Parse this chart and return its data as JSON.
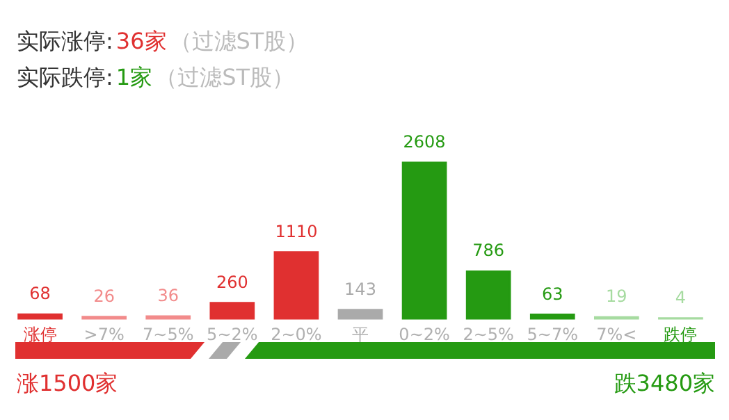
{
  "chart_data": {
    "type": "bar",
    "categories": [
      "涨停",
      ">7%",
      "7~5%",
      "5~2%",
      "2~0%",
      "平",
      "0~2%",
      "2~5%",
      "5~7%",
      "7%<",
      "跌停"
    ],
    "values": [
      68,
      26,
      36,
      260,
      1110,
      143,
      2608,
      786,
      63,
      19,
      4
    ],
    "colors": [
      "#e03030",
      "#f28b8b",
      "#f28b8b",
      "#e03030",
      "#e03030",
      "#aaaaaa",
      "#259a12",
      "#259a12",
      "#259a12",
      "#a6dba0",
      "#a6dba0"
    ],
    "data_labels": true,
    "annotations": [
      "实际涨停:",
      "36家",
      "（过滤ST股）",
      "实际跌停:",
      "1家",
      "（过滤ST股）",
      "涨1500家",
      "跌3480家"
    ]
  }
}
